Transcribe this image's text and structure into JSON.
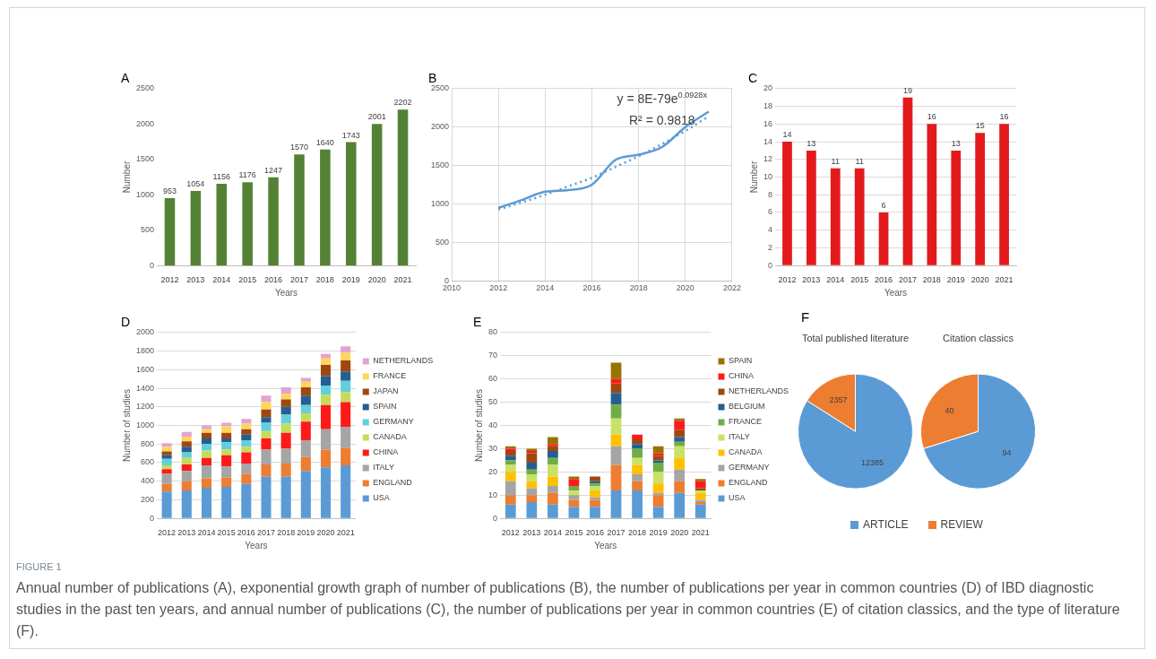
{
  "chart_data": [
    {
      "type": "bar",
      "title": "A",
      "xlabel": "Years",
      "ylabel": "Number",
      "categories": [
        "2012",
        "2013",
        "2014",
        "2015",
        "2016",
        "2017",
        "2018",
        "2019",
        "2020",
        "2021"
      ],
      "values": [
        953,
        1054,
        1156,
        1176,
        1247,
        1570,
        1640,
        1743,
        2001,
        2202
      ],
      "color": "#548235",
      "ylim": [
        0,
        2500
      ],
      "yticks": [
        0,
        500,
        1000,
        1500,
        2000,
        2500
      ],
      "data_labels": true
    },
    {
      "type": "line",
      "title": "B",
      "x": [
        2012,
        2013,
        2014,
        2015,
        2016,
        2017,
        2018,
        2019,
        2020,
        2021
      ],
      "series": [
        {
          "color": "#5b9bd5",
          "values": [
            950,
            1050,
            1160,
            1180,
            1250,
            1570,
            1640,
            1740,
            2000,
            2200
          ]
        },
        {
          "color": "#5b9bd5",
          "line_style": "dotted",
          "values": [
            930,
            1020,
            1120,
            1230,
            1340,
            1480,
            1620,
            1780,
            1950,
            2140
          ]
        }
      ],
      "xlim": [
        2010,
        2022
      ],
      "xticks": [
        2010,
        2012,
        2014,
        2016,
        2018,
        2020,
        2022
      ],
      "ylim": [
        0,
        2500
      ],
      "yticks": [
        0,
        500,
        1000,
        1500,
        2000,
        2500
      ],
      "grid": true,
      "marker": "none",
      "annotations": [
        "y = 8E-79e$^{0.0928x}$",
        "R² = 0.9818"
      ]
    },
    {
      "type": "bar",
      "title": "C",
      "xlabel": "Years",
      "ylabel": "Number",
      "categories": [
        "2012",
        "2013",
        "2014",
        "2015",
        "2016",
        "2017",
        "2018",
        "2019",
        "2020",
        "2021"
      ],
      "values": [
        14,
        13,
        11,
        11,
        6,
        19,
        16,
        13,
        15,
        16
      ],
      "color": "#e31a1c",
      "ylim": [
        0,
        20
      ],
      "yticks": [
        0,
        2,
        4,
        6,
        8,
        10,
        12,
        14,
        16,
        18,
        20
      ],
      "grid": "y",
      "data_labels": true
    },
    {
      "type": "bar",
      "title": "D",
      "xlabel": "Years",
      "ylabel": "Number of studies",
      "categories": [
        "2012",
        "2013",
        "2014",
        "2015",
        "2016",
        "2017",
        "2018",
        "2019",
        "2020",
        "2021"
      ],
      "stacked": true,
      "ylim": [
        0,
        2000
      ],
      "yticks": [
        0,
        200,
        400,
        600,
        800,
        1000,
        1200,
        1400,
        1600,
        1800,
        2000
      ],
      "grid": "y",
      "legend": "right",
      "series": [
        {
          "name": "USA",
          "color": "#5b9bd5",
          "values": [
            290,
            300,
            330,
            340,
            370,
            450,
            450,
            510,
            550,
            570
          ]
        },
        {
          "name": "ENGLAND",
          "color": "#ed7d31",
          "values": [
            80,
            100,
            100,
            100,
            110,
            130,
            140,
            150,
            190,
            190
          ]
        },
        {
          "name": "ITALY",
          "color": "#a5a5a5",
          "values": [
            110,
            110,
            140,
            120,
            110,
            160,
            160,
            180,
            220,
            220
          ]
        },
        {
          "name": "CHINA",
          "color": "#ff1a1a",
          "values": [
            50,
            70,
            80,
            120,
            120,
            120,
            170,
            200,
            260,
            270
          ]
        },
        {
          "name": "CANADA",
          "color": "#c5dc5a",
          "values": [
            40,
            70,
            80,
            60,
            60,
            80,
            100,
            90,
            110,
            110
          ]
        },
        {
          "name": "GERMANY",
          "color": "#62cfdc",
          "values": [
            70,
            60,
            70,
            80,
            70,
            90,
            100,
            90,
            100,
            120
          ]
        },
        {
          "name": "SPAIN",
          "color": "#255e91",
          "values": [
            40,
            60,
            60,
            40,
            60,
            60,
            80,
            100,
            100,
            100
          ]
        },
        {
          "name": "JAPAN",
          "color": "#9e480e",
          "values": [
            40,
            60,
            60,
            60,
            60,
            80,
            80,
            90,
            120,
            120
          ]
        },
        {
          "name": "FRANCE",
          "color": "#ffd65a",
          "values": [
            50,
            50,
            40,
            70,
            60,
            80,
            60,
            60,
            70,
            80
          ]
        },
        {
          "name": "NETHERLANDS",
          "color": "#e3a3d0",
          "values": [
            40,
            50,
            40,
            40,
            50,
            70,
            70,
            40,
            50,
            70
          ]
        }
      ]
    },
    {
      "type": "bar",
      "title": "E",
      "xlabel": "Years",
      "ylabel": "Number of studies",
      "categories": [
        "2012",
        "2013",
        "2014",
        "2015",
        "2016",
        "2017",
        "2018",
        "2019",
        "2020",
        "2021"
      ],
      "stacked": true,
      "ylim": [
        0,
        80
      ],
      "yticks": [
        0,
        10,
        20,
        30,
        40,
        50,
        60,
        70,
        80
      ],
      "grid": "y",
      "legend": "right",
      "series": [
        {
          "name": "USA",
          "color": "#5b9bd5",
          "values": [
            6,
            7,
            6,
            5,
            5,
            12,
            12,
            5,
            11,
            6
          ]
        },
        {
          "name": "ENGLAND",
          "color": "#ed7d31",
          "values": [
            4,
            3,
            5,
            3,
            3,
            11,
            4,
            5,
            5,
            1
          ]
        },
        {
          "name": "GERMANY",
          "color": "#a5a5a5",
          "values": [
            6,
            3,
            3,
            2,
            1,
            8,
            3,
            1,
            5,
            1
          ]
        },
        {
          "name": "CANADA",
          "color": "#ffc000",
          "values": [
            4,
            3,
            4,
            0,
            3,
            5,
            4,
            4,
            5,
            3
          ]
        },
        {
          "name": "ITALY",
          "color": "#c9e265",
          "values": [
            3,
            3,
            5,
            2,
            2,
            7,
            3,
            5,
            5,
            1
          ]
        },
        {
          "name": "FRANCE",
          "color": "#70ad47",
          "values": [
            2,
            2,
            3,
            2,
            1,
            6,
            4,
            4,
            2,
            0
          ]
        },
        {
          "name": "BELGIUM",
          "color": "#255e91",
          "values": [
            2,
            3,
            3,
            0,
            1,
            5,
            2,
            1,
            2,
            0
          ]
        },
        {
          "name": "NETHERLANDS",
          "color": "#9e480e",
          "values": [
            2,
            4,
            2,
            0,
            2,
            4,
            2,
            2,
            3,
            1
          ]
        },
        {
          "name": "CHINA",
          "color": "#ff1a1a",
          "values": [
            1,
            1,
            1,
            3,
            0,
            2,
            2,
            1,
            4,
            3
          ]
        },
        {
          "name": "SPAIN",
          "color": "#997300",
          "values": [
            1,
            1,
            3,
            1,
            0,
            7,
            0,
            3,
            1,
            1
          ]
        }
      ]
    },
    {
      "type": "pie",
      "title": "F",
      "categories": [
        "ARTICLE",
        "REVIEW"
      ],
      "colors": [
        "#5b9bd5",
        "#ed7d31"
      ],
      "data_labels": true,
      "legend": "bottom",
      "series": [
        {
          "name": "Total published literature",
          "values": [
            12385,
            2357
          ]
        },
        {
          "name": "Citation classics",
          "values": [
            94,
            40
          ]
        }
      ],
      "annotations": [
        "FIGURE 1",
        "Annual number of publications (A), exponential growth graph of number of publications (B), the number of publications per year in common countries (D) of IBD diagnostic studies in the past ten years, and annual number of publications (C), the number of publications per year in common countries (E) of citation classics, and the type of literature (F)."
      ]
    }
  ]
}
